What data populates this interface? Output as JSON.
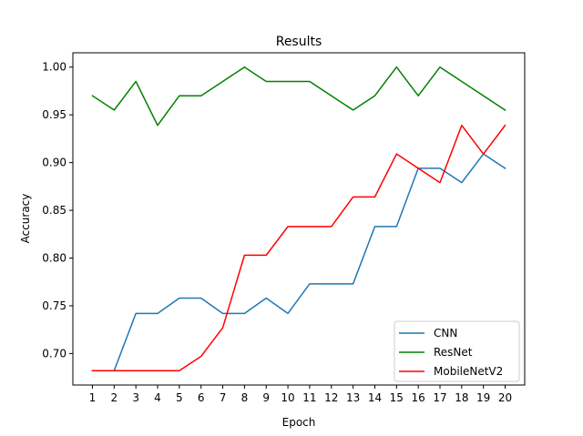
{
  "chart_data": {
    "type": "line",
    "title": "Results",
    "xlabel": "Epoch",
    "ylabel": "Accuracy",
    "x": [
      1,
      2,
      3,
      4,
      5,
      6,
      7,
      8,
      9,
      10,
      11,
      12,
      13,
      14,
      15,
      16,
      17,
      18,
      19,
      20
    ],
    "xlim": [
      0.1,
      20.9
    ],
    "ylim": [
      0.667,
      1.015
    ],
    "yticks": [
      0.7,
      0.75,
      0.8,
      0.85,
      0.9,
      0.95,
      1.0
    ],
    "ytick_labels": [
      "0.70",
      "0.75",
      "0.80",
      "0.85",
      "0.90",
      "0.95",
      "1.00"
    ],
    "grid": false,
    "legend_position": "lower-right",
    "series": [
      {
        "name": "CNN",
        "color": "#1f77b4",
        "values": [
          0.682,
          0.682,
          0.742,
          0.742,
          0.758,
          0.758,
          0.742,
          0.742,
          0.758,
          0.742,
          0.773,
          0.773,
          0.773,
          0.833,
          0.833,
          0.894,
          0.894,
          0.879,
          0.909,
          0.894
        ]
      },
      {
        "name": "ResNet",
        "color": "#008000",
        "values": [
          0.97,
          0.955,
          0.985,
          0.939,
          0.97,
          0.97,
          0.985,
          1.0,
          0.985,
          0.985,
          0.985,
          0.97,
          0.955,
          0.97,
          1.0,
          0.97,
          1.0,
          0.985,
          0.97,
          0.955
        ]
      },
      {
        "name": "MobileNetV2",
        "color": "#ff0000",
        "values": [
          0.682,
          0.682,
          0.682,
          0.682,
          0.682,
          0.697,
          0.727,
          0.803,
          0.803,
          0.833,
          0.833,
          0.833,
          0.864,
          0.864,
          0.909,
          0.894,
          0.879,
          0.939,
          0.909,
          0.939
        ]
      }
    ]
  }
}
